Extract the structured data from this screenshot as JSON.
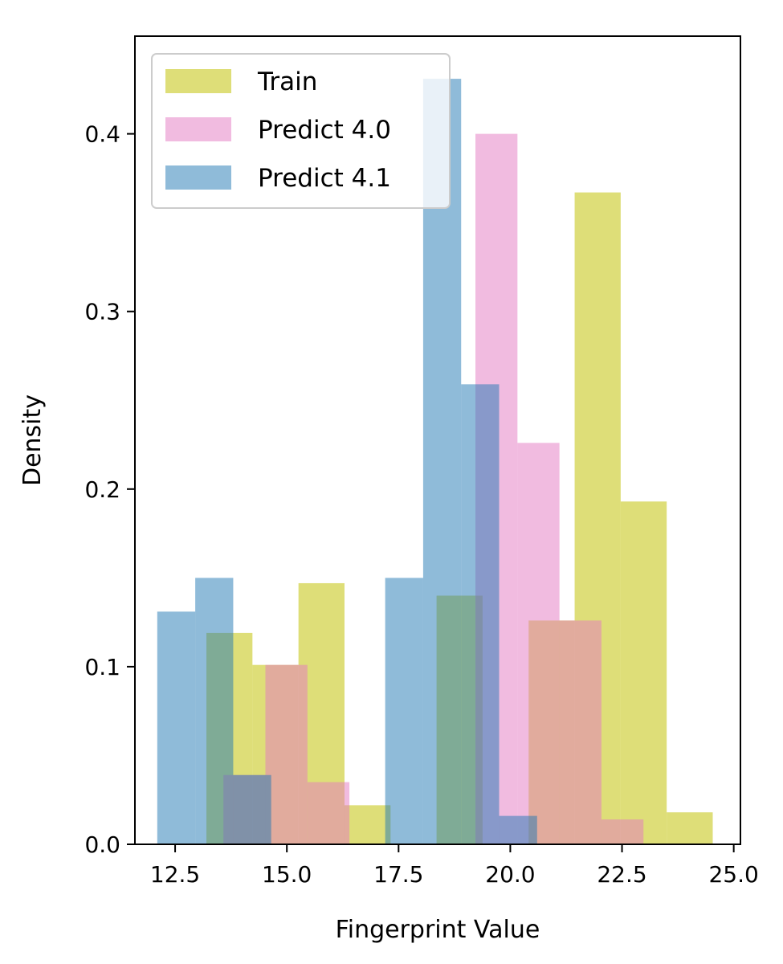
{
  "chart_data": {
    "type": "histogram",
    "xlabel": "Fingerprint Value",
    "ylabel": "Density",
    "xlim": [
      11.6,
      25.15
    ],
    "ylim": [
      0,
      0.455
    ],
    "xticks": [
      12.5,
      15.0,
      17.5,
      20.0,
      22.5,
      25.0
    ],
    "xtick_labels": [
      "12.5",
      "15.0",
      "17.5",
      "20.0",
      "22.5",
      "25.0"
    ],
    "yticks": [
      0.0,
      0.1,
      0.2,
      0.3,
      0.4
    ],
    "ytick_labels": [
      "0.0",
      "0.1",
      "0.2",
      "0.3",
      "0.4"
    ],
    "grid": false,
    "legend_position": "top-left",
    "series": [
      {
        "name": "Train",
        "color": "#c8c81e",
        "opacity": 0.6,
        "bins": [
          {
            "x0": 13.2,
            "x1": 14.23,
            "value": 0.119
          },
          {
            "x0": 14.23,
            "x1": 15.26,
            "value": 0.101
          },
          {
            "x0": 15.26,
            "x1": 16.29,
            "value": 0.147
          },
          {
            "x0": 16.29,
            "x1": 17.32,
            "value": 0.022
          },
          {
            "x0": 17.32,
            "x1": 18.35,
            "value": 0.0
          },
          {
            "x0": 18.35,
            "x1": 19.38,
            "value": 0.14
          },
          {
            "x0": 19.38,
            "x1": 20.41,
            "value": 0.0
          },
          {
            "x0": 20.41,
            "x1": 21.44,
            "value": 0.126
          },
          {
            "x0": 21.44,
            "x1": 22.47,
            "value": 0.367
          },
          {
            "x0": 22.47,
            "x1": 23.5,
            "value": 0.193
          },
          {
            "x0": 23.5,
            "x1": 24.53,
            "value": 0.018
          }
        ]
      },
      {
        "name": "Predict 4.0",
        "color": "#e377c2",
        "opacity": 0.5,
        "bins": [
          {
            "x0": 13.58,
            "x1": 14.52,
            "value": 0.039
          },
          {
            "x0": 14.52,
            "x1": 15.46,
            "value": 0.101
          },
          {
            "x0": 15.46,
            "x1": 16.4,
            "value": 0.035
          },
          {
            "x0": 16.4,
            "x1": 17.34,
            "value": 0.0
          },
          {
            "x0": 17.34,
            "x1": 18.28,
            "value": 0.0
          },
          {
            "x0": 18.28,
            "x1": 19.22,
            "value": 0.0
          },
          {
            "x0": 19.22,
            "x1": 20.16,
            "value": 0.4
          },
          {
            "x0": 20.16,
            "x1": 21.1,
            "value": 0.226
          },
          {
            "x0": 21.1,
            "x1": 22.04,
            "value": 0.126
          },
          {
            "x0": 22.04,
            "x1": 22.98,
            "value": 0.014
          }
        ]
      },
      {
        "name": "Predict 4.1",
        "color": "#1f77b4",
        "opacity": 0.5,
        "bins": [
          {
            "x0": 12.1,
            "x1": 12.95,
            "value": 0.131
          },
          {
            "x0": 12.95,
            "x1": 13.8,
            "value": 0.15
          },
          {
            "x0": 13.8,
            "x1": 14.65,
            "value": 0.039
          },
          {
            "x0": 14.65,
            "x1": 15.5,
            "value": 0.0
          },
          {
            "x0": 15.5,
            "x1": 16.35,
            "value": 0.0
          },
          {
            "x0": 16.35,
            "x1": 17.2,
            "value": 0.0
          },
          {
            "x0": 17.2,
            "x1": 18.05,
            "value": 0.15
          },
          {
            "x0": 18.05,
            "x1": 18.9,
            "value": 0.431
          },
          {
            "x0": 18.9,
            "x1": 19.75,
            "value": 0.259
          },
          {
            "x0": 19.75,
            "x1": 20.6,
            "value": 0.016
          }
        ]
      }
    ],
    "legend": [
      {
        "label": "Train",
        "color": "#c8c81e",
        "opacity": 0.6
      },
      {
        "label": "Predict 4.0",
        "color": "#e377c2",
        "opacity": 0.5
      },
      {
        "label": "Predict 4.1",
        "color": "#1f77b4",
        "opacity": 0.5
      }
    ]
  }
}
